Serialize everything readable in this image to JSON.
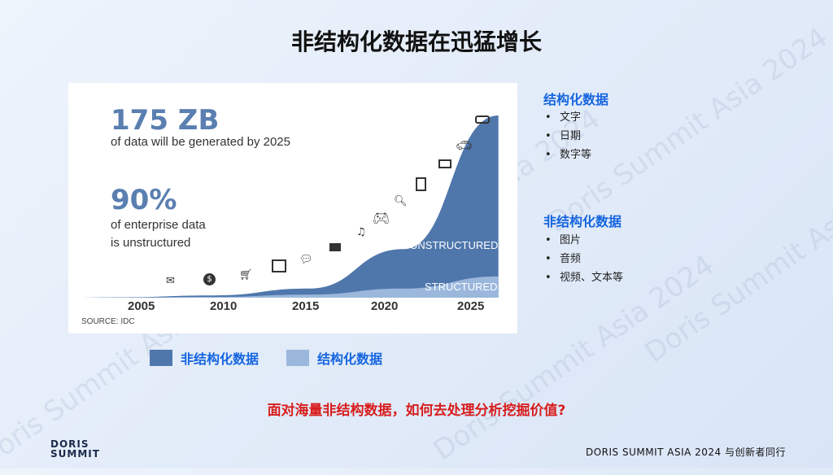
{
  "slide": {
    "title": "非结构化数据在迅猛增长",
    "watermark": "Doris Summit Asia 2024"
  },
  "chart_data": {
    "type": "area",
    "x": [
      2005,
      2010,
      2015,
      2020,
      2025
    ],
    "series": [
      {
        "name": "UNSTRUCTURED",
        "values": [
          0.3,
          1.5,
          6,
          32,
          120
        ]
      },
      {
        "name": "STRUCTURED",
        "values": [
          0.1,
          0.5,
          2,
          6,
          14
        ]
      }
    ],
    "tick_labels": [
      "2005",
      "2010",
      "2015",
      "2020",
      "2025"
    ],
    "stat1_value": "175 ZB",
    "stat1_text": "of data will be generated by 2025",
    "stat2_value": "90%",
    "stat2_text_line1": "of enterprise data",
    "stat2_text_line2": "is unstructured",
    "source": "SOURCE: IDC",
    "colors": {
      "unstructured": "#4f77ac",
      "structured": "#9bb7dc"
    }
  },
  "side": {
    "structured_heading": "结构化数据",
    "structured_items": [
      "文字",
      "日期",
      "数字等"
    ],
    "unstructured_heading": "非结构化数据",
    "unstructured_items": [
      "图片",
      "音频",
      "视频、文本等"
    ]
  },
  "legend": {
    "items": [
      {
        "label": "非结构化数据",
        "color": "#4f77ac"
      },
      {
        "label": "结构化数据",
        "color": "#9bb7dc"
      }
    ]
  },
  "question": "面对海量非结构数据，如何去处理分析挖掘价值?",
  "footer": {
    "logo_line1": "DORIS",
    "logo_line2": "SUMMIT",
    "right_text": "DORIS SUMMIT ASIA 2024  与创新者同行"
  },
  "icons": [
    "mail-icon",
    "dollar-icon",
    "cart-icon",
    "image-icon",
    "chat-icon",
    "film-icon",
    "music-icon",
    "gamepad-icon",
    "search-icon",
    "document-icon",
    "billboard-icon",
    "car-icon",
    "router-icon"
  ]
}
